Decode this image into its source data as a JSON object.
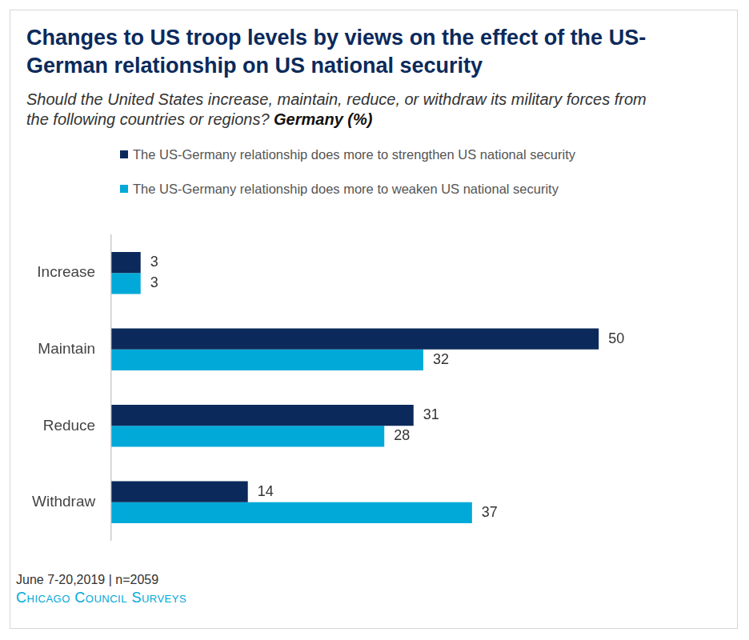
{
  "chart_data": {
    "type": "bar",
    "orientation": "horizontal",
    "title": "Changes to US troop levels by views on the effect of the US-German relationship on US national security",
    "subtitle": "Should the United States increase, maintain, reduce, or withdraw its military forces from the following countries or regions?",
    "subtitle_bold": "Germany (%)",
    "categories": [
      "Increase",
      "Maintain",
      "Reduce",
      "Withdraw"
    ],
    "series": [
      {
        "name": "The US-Germany relationship does more to strengthen US national security",
        "color": "#0b2a5b",
        "values": [
          3,
          50,
          31,
          14
        ]
      },
      {
        "name": "The US-Germany relationship does more to weaken US national security",
        "color": "#00a9d8",
        "values": [
          3,
          32,
          28,
          37
        ]
      }
    ],
    "xlim": [
      0,
      60
    ],
    "grid": false,
    "tick_labels": "y",
    "data_labels": true,
    "legend": "top",
    "note": "June 7-20,2019 | n=2059",
    "source": "Chicago Council Surveys"
  }
}
